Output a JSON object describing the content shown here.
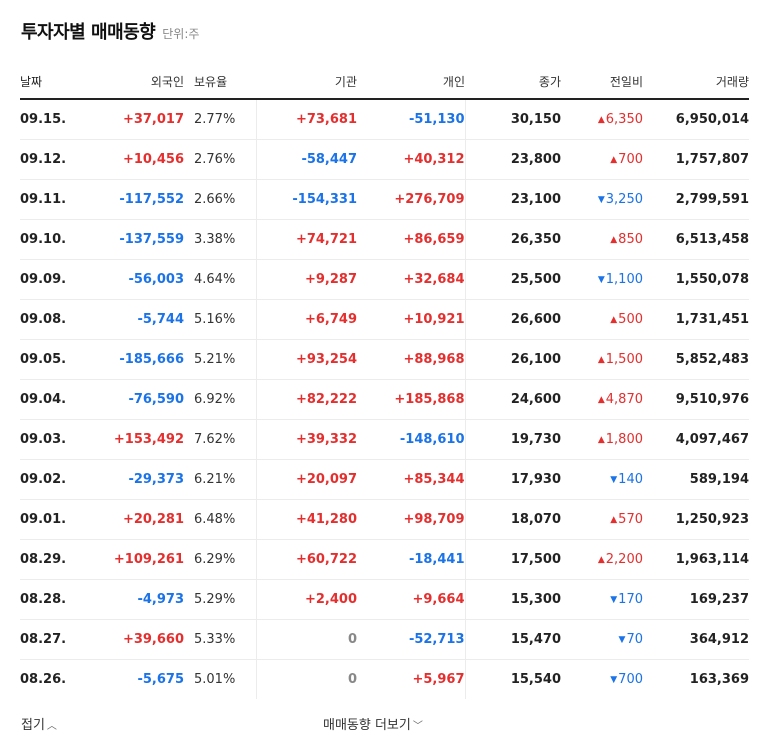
{
  "header": {
    "title": "투자자별 매매동향",
    "unit": "단위:주"
  },
  "columns": [
    "날짜",
    "외국인",
    "보유율",
    "기관",
    "개인",
    "종가",
    "전일비",
    "거래량"
  ],
  "rows": [
    {
      "date": "09.15.",
      "foreign": "+37,017",
      "hold": "2.77%",
      "inst": "+73,681",
      "indiv": "-51,130",
      "close": "30,150",
      "change": "6,350",
      "dir": "up",
      "volume": "6,950,014"
    },
    {
      "date": "09.12.",
      "foreign": "+10,456",
      "hold": "2.76%",
      "inst": "-58,447",
      "indiv": "+40,312",
      "close": "23,800",
      "change": "700",
      "dir": "up",
      "volume": "1,757,807"
    },
    {
      "date": "09.11.",
      "foreign": "-117,552",
      "hold": "2.66%",
      "inst": "-154,331",
      "indiv": "+276,709",
      "close": "23,100",
      "change": "3,250",
      "dir": "down",
      "volume": "2,799,591"
    },
    {
      "date": "09.10.",
      "foreign": "-137,559",
      "hold": "3.38%",
      "inst": "+74,721",
      "indiv": "+86,659",
      "close": "26,350",
      "change": "850",
      "dir": "up",
      "volume": "6,513,458"
    },
    {
      "date": "09.09.",
      "foreign": "-56,003",
      "hold": "4.64%",
      "inst": "+9,287",
      "indiv": "+32,684",
      "close": "25,500",
      "change": "1,100",
      "dir": "down",
      "volume": "1,550,078"
    },
    {
      "date": "09.08.",
      "foreign": "-5,744",
      "hold": "5.16%",
      "inst": "+6,749",
      "indiv": "+10,921",
      "close": "26,600",
      "change": "500",
      "dir": "up",
      "volume": "1,731,451"
    },
    {
      "date": "09.05.",
      "foreign": "-185,666",
      "hold": "5.21%",
      "inst": "+93,254",
      "indiv": "+88,968",
      "close": "26,100",
      "change": "1,500",
      "dir": "up",
      "volume": "5,852,483"
    },
    {
      "date": "09.04.",
      "foreign": "-76,590",
      "hold": "6.92%",
      "inst": "+82,222",
      "indiv": "+185,868",
      "close": "24,600",
      "change": "4,870",
      "dir": "up",
      "volume": "9,510,976"
    },
    {
      "date": "09.03.",
      "foreign": "+153,492",
      "hold": "7.62%",
      "inst": "+39,332",
      "indiv": "-148,610",
      "close": "19,730",
      "change": "1,800",
      "dir": "up",
      "volume": "4,097,467"
    },
    {
      "date": "09.02.",
      "foreign": "-29,373",
      "hold": "6.21%",
      "inst": "+20,097",
      "indiv": "+85,344",
      "close": "17,930",
      "change": "140",
      "dir": "down",
      "volume": "589,194"
    },
    {
      "date": "09.01.",
      "foreign": "+20,281",
      "hold": "6.48%",
      "inst": "+41,280",
      "indiv": "+98,709",
      "close": "18,070",
      "change": "570",
      "dir": "up",
      "volume": "1,250,923"
    },
    {
      "date": "08.29.",
      "foreign": "+109,261",
      "hold": "6.29%",
      "inst": "+60,722",
      "indiv": "-18,441",
      "close": "17,500",
      "change": "2,200",
      "dir": "up",
      "volume": "1,963,114"
    },
    {
      "date": "08.28.",
      "foreign": "-4,973",
      "hold": "5.29%",
      "inst": "+2,400",
      "indiv": "+9,664",
      "close": "15,300",
      "change": "170",
      "dir": "down",
      "volume": "169,237"
    },
    {
      "date": "08.27.",
      "foreign": "+39,660",
      "hold": "5.33%",
      "inst": "0",
      "indiv": "-52,713",
      "close": "15,470",
      "change": "70",
      "dir": "down",
      "volume": "364,912"
    },
    {
      "date": "08.26.",
      "foreign": "-5,675",
      "hold": "5.01%",
      "inst": "0",
      "indiv": "+5,967",
      "close": "15,540",
      "change": "700",
      "dir": "down",
      "volume": "163,369"
    }
  ],
  "footer": {
    "fold_label": "접기",
    "more_label": "매매동향 더보기"
  },
  "icons": {
    "up": "triangle-up-icon",
    "down": "triangle-down-icon",
    "fold": "chevron-up-icon",
    "more": "chevron-down-icon"
  },
  "colors": {
    "up": "#e52e2e",
    "down": "#1a73e8",
    "zero": "#888888"
  }
}
